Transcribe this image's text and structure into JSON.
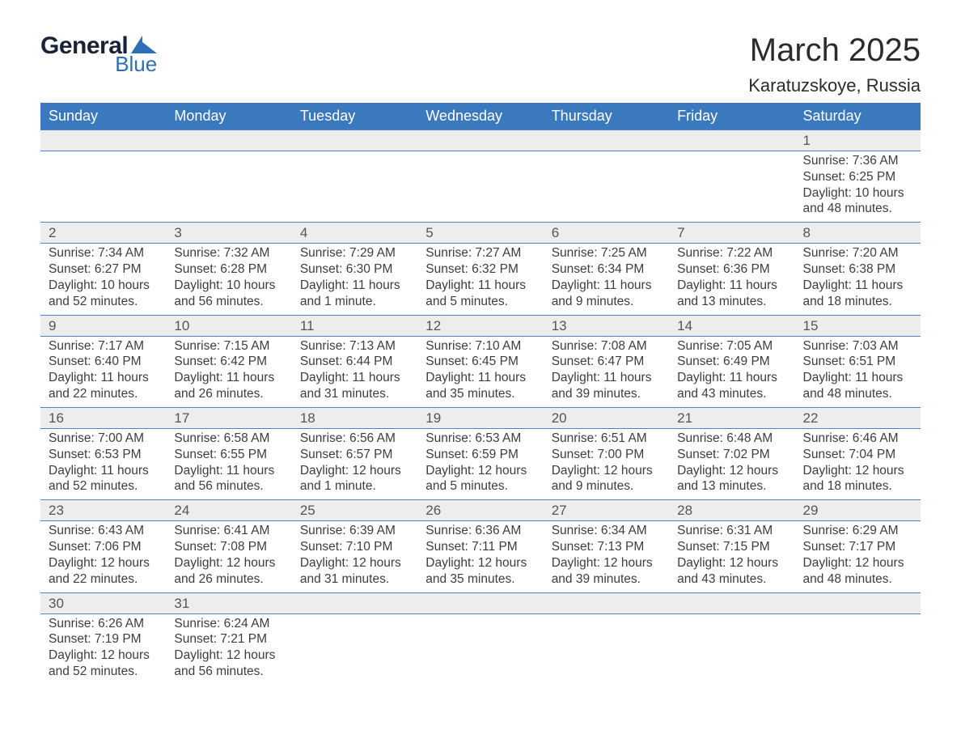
{
  "logo": {
    "line1": "General",
    "line2": "Blue",
    "brand_color": "#2b6fb5",
    "dark_color": "#18233a"
  },
  "title": {
    "month": "March 2025",
    "place": "Karatuzskoye, Russia"
  },
  "colors": {
    "header_bg": "#3a79bd",
    "header_text": "#ffffff",
    "row_divider": "#4a86c5",
    "daynum_bg": "#ededed",
    "text": "#3d3d3d",
    "page_bg": "#ffffff"
  },
  "typography": {
    "title_fontsize": 40,
    "subtitle_fontsize": 22,
    "header_fontsize": 18,
    "body_fontsize": 15.5
  },
  "layout": {
    "columns": 7,
    "week_rows": 6,
    "start_day": "Sunday"
  },
  "days_of_week": [
    "Sunday",
    "Monday",
    "Tuesday",
    "Wednesday",
    "Thursday",
    "Friday",
    "Saturday"
  ],
  "weeks": [
    [
      null,
      null,
      null,
      null,
      null,
      null,
      {
        "d": "1",
        "sr": "Sunrise: 7:36 AM",
        "ss": "Sunset: 6:25 PM",
        "dl1": "Daylight: 10 hours",
        "dl2": "and 48 minutes."
      }
    ],
    [
      {
        "d": "2",
        "sr": "Sunrise: 7:34 AM",
        "ss": "Sunset: 6:27 PM",
        "dl1": "Daylight: 10 hours",
        "dl2": "and 52 minutes."
      },
      {
        "d": "3",
        "sr": "Sunrise: 7:32 AM",
        "ss": "Sunset: 6:28 PM",
        "dl1": "Daylight: 10 hours",
        "dl2": "and 56 minutes."
      },
      {
        "d": "4",
        "sr": "Sunrise: 7:29 AM",
        "ss": "Sunset: 6:30 PM",
        "dl1": "Daylight: 11 hours",
        "dl2": "and 1 minute."
      },
      {
        "d": "5",
        "sr": "Sunrise: 7:27 AM",
        "ss": "Sunset: 6:32 PM",
        "dl1": "Daylight: 11 hours",
        "dl2": "and 5 minutes."
      },
      {
        "d": "6",
        "sr": "Sunrise: 7:25 AM",
        "ss": "Sunset: 6:34 PM",
        "dl1": "Daylight: 11 hours",
        "dl2": "and 9 minutes."
      },
      {
        "d": "7",
        "sr": "Sunrise: 7:22 AM",
        "ss": "Sunset: 6:36 PM",
        "dl1": "Daylight: 11 hours",
        "dl2": "and 13 minutes."
      },
      {
        "d": "8",
        "sr": "Sunrise: 7:20 AM",
        "ss": "Sunset: 6:38 PM",
        "dl1": "Daylight: 11 hours",
        "dl2": "and 18 minutes."
      }
    ],
    [
      {
        "d": "9",
        "sr": "Sunrise: 7:17 AM",
        "ss": "Sunset: 6:40 PM",
        "dl1": "Daylight: 11 hours",
        "dl2": "and 22 minutes."
      },
      {
        "d": "10",
        "sr": "Sunrise: 7:15 AM",
        "ss": "Sunset: 6:42 PM",
        "dl1": "Daylight: 11 hours",
        "dl2": "and 26 minutes."
      },
      {
        "d": "11",
        "sr": "Sunrise: 7:13 AM",
        "ss": "Sunset: 6:44 PM",
        "dl1": "Daylight: 11 hours",
        "dl2": "and 31 minutes."
      },
      {
        "d": "12",
        "sr": "Sunrise: 7:10 AM",
        "ss": "Sunset: 6:45 PM",
        "dl1": "Daylight: 11 hours",
        "dl2": "and 35 minutes."
      },
      {
        "d": "13",
        "sr": "Sunrise: 7:08 AM",
        "ss": "Sunset: 6:47 PM",
        "dl1": "Daylight: 11 hours",
        "dl2": "and 39 minutes."
      },
      {
        "d": "14",
        "sr": "Sunrise: 7:05 AM",
        "ss": "Sunset: 6:49 PM",
        "dl1": "Daylight: 11 hours",
        "dl2": "and 43 minutes."
      },
      {
        "d": "15",
        "sr": "Sunrise: 7:03 AM",
        "ss": "Sunset: 6:51 PM",
        "dl1": "Daylight: 11 hours",
        "dl2": "and 48 minutes."
      }
    ],
    [
      {
        "d": "16",
        "sr": "Sunrise: 7:00 AM",
        "ss": "Sunset: 6:53 PM",
        "dl1": "Daylight: 11 hours",
        "dl2": "and 52 minutes."
      },
      {
        "d": "17",
        "sr": "Sunrise: 6:58 AM",
        "ss": "Sunset: 6:55 PM",
        "dl1": "Daylight: 11 hours",
        "dl2": "and 56 minutes."
      },
      {
        "d": "18",
        "sr": "Sunrise: 6:56 AM",
        "ss": "Sunset: 6:57 PM",
        "dl1": "Daylight: 12 hours",
        "dl2": "and 1 minute."
      },
      {
        "d": "19",
        "sr": "Sunrise: 6:53 AM",
        "ss": "Sunset: 6:59 PM",
        "dl1": "Daylight: 12 hours",
        "dl2": "and 5 minutes."
      },
      {
        "d": "20",
        "sr": "Sunrise: 6:51 AM",
        "ss": "Sunset: 7:00 PM",
        "dl1": "Daylight: 12 hours",
        "dl2": "and 9 minutes."
      },
      {
        "d": "21",
        "sr": "Sunrise: 6:48 AM",
        "ss": "Sunset: 7:02 PM",
        "dl1": "Daylight: 12 hours",
        "dl2": "and 13 minutes."
      },
      {
        "d": "22",
        "sr": "Sunrise: 6:46 AM",
        "ss": "Sunset: 7:04 PM",
        "dl1": "Daylight: 12 hours",
        "dl2": "and 18 minutes."
      }
    ],
    [
      {
        "d": "23",
        "sr": "Sunrise: 6:43 AM",
        "ss": "Sunset: 7:06 PM",
        "dl1": "Daylight: 12 hours",
        "dl2": "and 22 minutes."
      },
      {
        "d": "24",
        "sr": "Sunrise: 6:41 AM",
        "ss": "Sunset: 7:08 PM",
        "dl1": "Daylight: 12 hours",
        "dl2": "and 26 minutes."
      },
      {
        "d": "25",
        "sr": "Sunrise: 6:39 AM",
        "ss": "Sunset: 7:10 PM",
        "dl1": "Daylight: 12 hours",
        "dl2": "and 31 minutes."
      },
      {
        "d": "26",
        "sr": "Sunrise: 6:36 AM",
        "ss": "Sunset: 7:11 PM",
        "dl1": "Daylight: 12 hours",
        "dl2": "and 35 minutes."
      },
      {
        "d": "27",
        "sr": "Sunrise: 6:34 AM",
        "ss": "Sunset: 7:13 PM",
        "dl1": "Daylight: 12 hours",
        "dl2": "and 39 minutes."
      },
      {
        "d": "28",
        "sr": "Sunrise: 6:31 AM",
        "ss": "Sunset: 7:15 PM",
        "dl1": "Daylight: 12 hours",
        "dl2": "and 43 minutes."
      },
      {
        "d": "29",
        "sr": "Sunrise: 6:29 AM",
        "ss": "Sunset: 7:17 PM",
        "dl1": "Daylight: 12 hours",
        "dl2": "and 48 minutes."
      }
    ],
    [
      {
        "d": "30",
        "sr": "Sunrise: 6:26 AM",
        "ss": "Sunset: 7:19 PM",
        "dl1": "Daylight: 12 hours",
        "dl2": "and 52 minutes."
      },
      {
        "d": "31",
        "sr": "Sunrise: 6:24 AM",
        "ss": "Sunset: 7:21 PM",
        "dl1": "Daylight: 12 hours",
        "dl2": "and 56 minutes."
      },
      null,
      null,
      null,
      null,
      null
    ]
  ]
}
